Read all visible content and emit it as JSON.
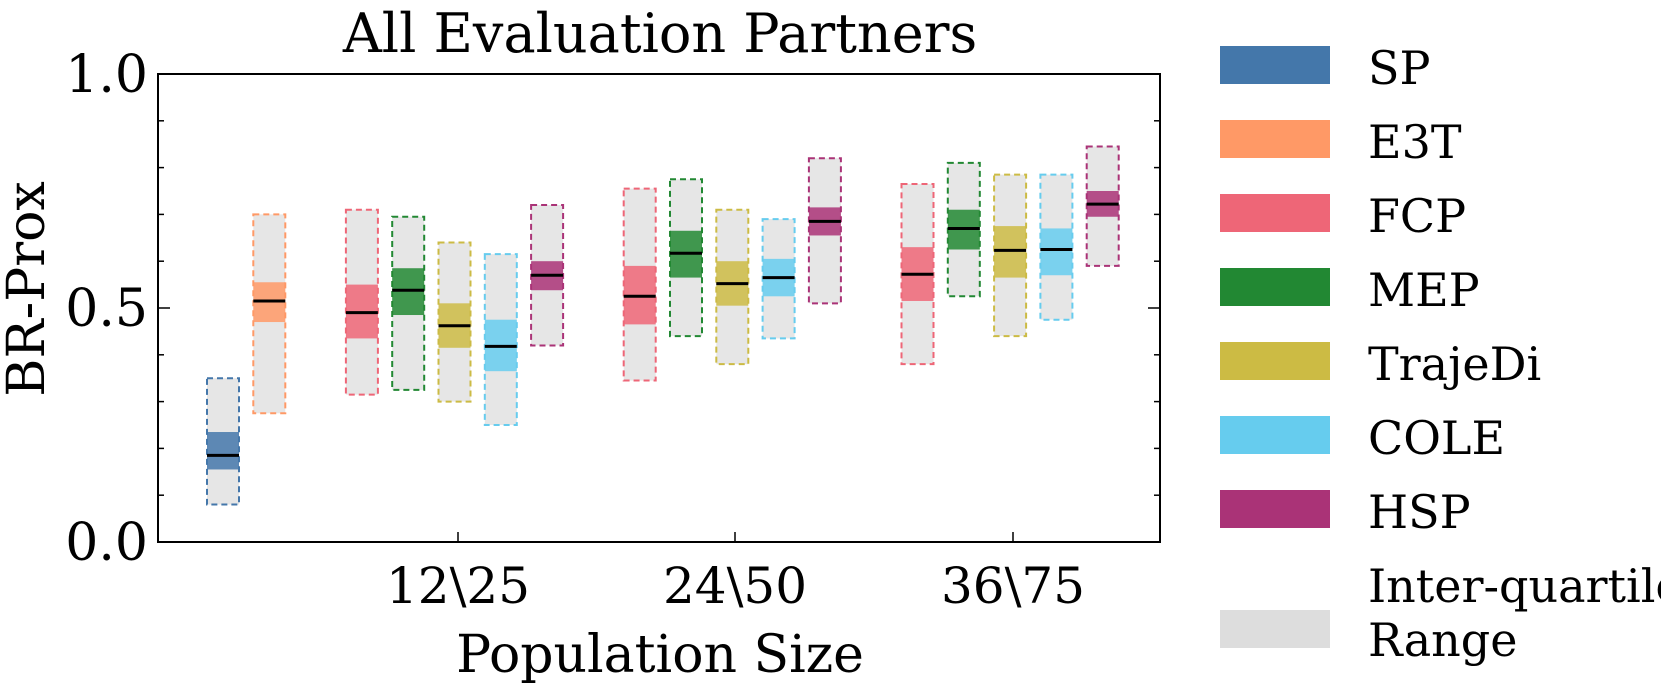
{
  "chart_data": {
    "type": "box",
    "title": "All Evaluation Partners",
    "xlabel": "Population Size",
    "ylabel": "BR-Prox",
    "ylim": [
      0.0,
      1.0
    ],
    "yticks": [
      "0.0",
      "0.5",
      "1.0"
    ],
    "groups": [
      "",
      "12\\25",
      "24\\50",
      "36\\75"
    ],
    "series": [
      {
        "name": "SP",
        "color": "#4477aa",
        "boxes": [
          {
            "group": "",
            "q1": 0.08,
            "q3": 0.35,
            "ci": [
              0.155,
              0.235
            ],
            "median": 0.185
          }
        ]
      },
      {
        "name": "E3T",
        "color": "#ff9966",
        "boxes": [
          {
            "group": "",
            "q1": 0.275,
            "q3": 0.7,
            "ci": [
              0.47,
              0.555
            ],
            "median": 0.515
          }
        ]
      },
      {
        "name": "FCP",
        "color": "#ee6677",
        "boxes": [
          {
            "group": "12\\25",
            "q1": 0.315,
            "q3": 0.71,
            "ci": [
              0.435,
              0.55
            ],
            "median": 0.49
          },
          {
            "group": "24\\50",
            "q1": 0.345,
            "q3": 0.755,
            "ci": [
              0.465,
              0.59
            ],
            "median": 0.525
          },
          {
            "group": "36\\75",
            "q1": 0.38,
            "q3": 0.765,
            "ci": [
              0.515,
              0.63
            ],
            "median": 0.572
          }
        ]
      },
      {
        "name": "MEP",
        "color": "#228833",
        "boxes": [
          {
            "group": "12\\25",
            "q1": 0.325,
            "q3": 0.695,
            "ci": [
              0.485,
              0.585
            ],
            "median": 0.538
          },
          {
            "group": "24\\50",
            "q1": 0.44,
            "q3": 0.775,
            "ci": [
              0.565,
              0.665
            ],
            "median": 0.617
          },
          {
            "group": "36\\75",
            "q1": 0.525,
            "q3": 0.81,
            "ci": [
              0.625,
              0.71
            ],
            "median": 0.67
          }
        ]
      },
      {
        "name": "TrajeDi",
        "color": "#ccbb44",
        "boxes": [
          {
            "group": "12\\25",
            "q1": 0.3,
            "q3": 0.64,
            "ci": [
              0.415,
              0.51
            ],
            "median": 0.462
          },
          {
            "group": "24\\50",
            "q1": 0.38,
            "q3": 0.71,
            "ci": [
              0.505,
              0.6
            ],
            "median": 0.552
          },
          {
            "group": "36\\75",
            "q1": 0.44,
            "q3": 0.785,
            "ci": [
              0.565,
              0.675
            ],
            "median": 0.623
          }
        ]
      },
      {
        "name": "COLE",
        "color": "#66ccee",
        "boxes": [
          {
            "group": "12\\25",
            "q1": 0.25,
            "q3": 0.615,
            "ci": [
              0.365,
              0.475
            ],
            "median": 0.418
          },
          {
            "group": "24\\50",
            "q1": 0.435,
            "q3": 0.69,
            "ci": [
              0.525,
              0.605
            ],
            "median": 0.565
          },
          {
            "group": "36\\75",
            "q1": 0.475,
            "q3": 0.785,
            "ci": [
              0.57,
              0.67
            ],
            "median": 0.625
          }
        ]
      },
      {
        "name": "HSP",
        "color": "#aa3377",
        "boxes": [
          {
            "group": "",
            "q1": 0.42,
            "q3": 0.72,
            "ci": [
              0.538,
              0.6
            ],
            "median": 0.57
          },
          {
            "group": "24\\50",
            "q1": 0.51,
            "q3": 0.82,
            "ci": [
              0.655,
              0.715
            ],
            "median": 0.685
          },
          {
            "group": "36\\75",
            "q1": 0.59,
            "q3": 0.845,
            "ci": [
              0.695,
              0.75
            ],
            "median": 0.722
          }
        ]
      }
    ],
    "legend": {
      "placement": "right",
      "entries": [
        {
          "label": "SP",
          "color": "#4477aa"
        },
        {
          "label": "E3T",
          "color": "#ff9966"
        },
        {
          "label": "FCP",
          "color": "#ee6677"
        },
        {
          "label": "MEP",
          "color": "#228833"
        },
        {
          "label": "TrajeDi",
          "color": "#ccbb44"
        },
        {
          "label": "COLE",
          "color": "#66ccee"
        },
        {
          "label": "HSP",
          "color": "#aa3377"
        },
        {
          "label": [
            "Inter-quartile",
            "Range"
          ],
          "color": "#dddddd"
        }
      ]
    }
  }
}
